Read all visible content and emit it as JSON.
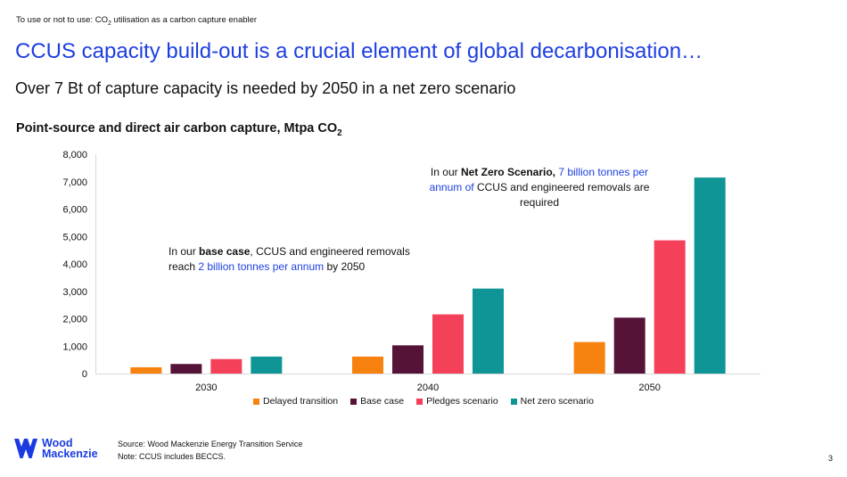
{
  "header": {
    "kicker_pre": "To use or not to use: CO",
    "kicker_sub": "2",
    "kicker_post": " utilisation as a carbon capture enabler",
    "headline": "CCUS capacity build-out is a crucial element of global decarbonisation…",
    "subhead": "Over 7 Bt of capture capacity is needed by 2050 in a net zero scenario"
  },
  "chart_data": {
    "type": "bar",
    "title_pre": "Point-source and direct air carbon capture, Mtpa CO",
    "title_sub": "2",
    "categories": [
      "2030",
      "2040",
      "2050"
    ],
    "series": [
      {
        "name": "Delayed transition",
        "color": "#f7820f",
        "values": [
          230,
          620,
          1150
        ]
      },
      {
        "name": "Base case",
        "color": "#541337",
        "values": [
          350,
          1030,
          2040
        ]
      },
      {
        "name": "Pledges scenario",
        "color": "#f5405a",
        "values": [
          530,
          2160,
          4860
        ]
      },
      {
        "name": "Net zero scenario",
        "color": "#0f9595",
        "values": [
          620,
          3100,
          7150
        ]
      }
    ],
    "ylim": [
      0,
      8000
    ],
    "yticks": [
      0,
      1000,
      2000,
      3000,
      4000,
      5000,
      6000,
      7000,
      8000
    ],
    "ytick_labels": [
      "0",
      "1,000",
      "2,000",
      "3,000",
      "4,000",
      "5,000",
      "6,000",
      "7,000",
      "8,000"
    ],
    "legend_position": "bottom"
  },
  "annotations": {
    "base": {
      "t1": "In our ",
      "b1": "base case",
      "t2": ", CCUS and engineered removals reach ",
      "h1": "2 billion tonnes per annum",
      "t3": " by 2050"
    },
    "net_zero": {
      "t1": "In our ",
      "b1": "Net Zero Scenario,",
      "h1": " 7 billion tonnes per annum of",
      "t2": " CCUS and engineered removals are required"
    }
  },
  "footer": {
    "logo_line1": "Wood",
    "logo_line2": "Mackenzie",
    "source": "Source: Wood Mackenzie Energy Transition Service",
    "note": "Note: CCUS includes BECCS.",
    "page_number": "3"
  },
  "colors": {
    "accent": "#1e3fe0",
    "logo": "#1a3be0"
  }
}
